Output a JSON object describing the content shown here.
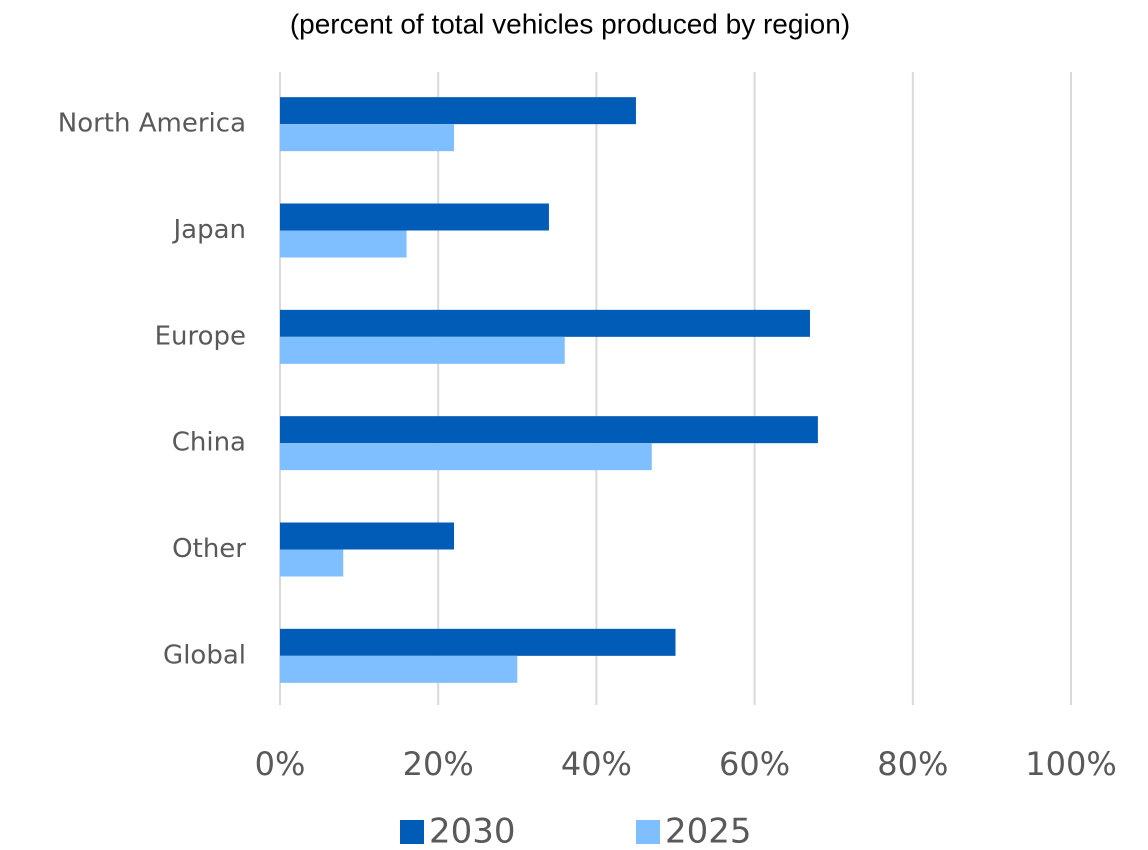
{
  "chart_data": {
    "type": "hbar",
    "title": "(percent of total vehicles produced by region)",
    "categories": [
      "North America",
      "Japan",
      "Europe",
      "China",
      "Other",
      "Global"
    ],
    "series": [
      {
        "name": "2030",
        "color": "#005cb7",
        "values": [
          45,
          34,
          67,
          68,
          22,
          50
        ]
      },
      {
        "name": "2025",
        "color": "#7fbfff",
        "values": [
          22,
          16,
          36,
          47,
          8,
          30
        ]
      }
    ],
    "xlim": [
      0,
      100
    ],
    "xticks": [
      {
        "value": 0,
        "label": "0%"
      },
      {
        "value": 20,
        "label": "20%"
      },
      {
        "value": 40,
        "label": "40%"
      },
      {
        "value": 60,
        "label": "60%"
      },
      {
        "value": 80,
        "label": "80%"
      },
      {
        "value": 100,
        "label": "100%"
      }
    ],
    "grid": true,
    "legend": "bottom"
  }
}
